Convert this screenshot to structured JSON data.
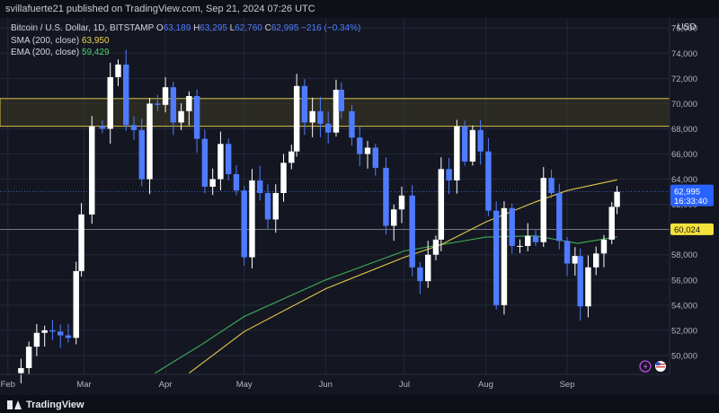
{
  "header": {
    "published": "svillafuerte21 published on TradingView.com, Sep 21, 2024 07:26 UTC"
  },
  "legend": {
    "symbol": "Bitcoin / U.S. Dollar, 1D, BITSTAMP",
    "ohlc": [
      {
        "k": "O",
        "v": "63,189"
      },
      {
        "k": "H",
        "v": "63,295"
      },
      {
        "k": "L",
        "v": "62,760"
      },
      {
        "k": "C",
        "v": "62,995"
      }
    ],
    "change": "−216 (−0.34%)",
    "sma_label": "SMA (200, close)",
    "sma_value": "63,950",
    "ema_label": "EMA (200, close)",
    "ema_value": "59,429"
  },
  "currency_button": "USD",
  "brand": "TradingView",
  "colors": {
    "background": "#141722",
    "up_candle": "#ffffff",
    "down_candle": "#4f7bff",
    "sma": "#e3c94a",
    "ema": "#3fae5a",
    "zone_fill": "#3c3a22",
    "zone_border": "#d8c24a"
  },
  "chart_data": {
    "type": "candlestick",
    "y_axis_ticks": [
      "76,000",
      "74,000",
      "72,000",
      "70,000",
      "68,000",
      "66,000",
      "64,000",
      "62,000",
      "60,000",
      "58,000",
      "56,000",
      "54,000",
      "52,000",
      "50,000"
    ],
    "ylim": [
      48500,
      76800
    ],
    "x_axis_labels": [
      "Feb",
      "Mar",
      "Apr",
      "May",
      "Jun",
      "Jul",
      "Aug",
      "Sep"
    ],
    "x_label_dates": [
      "2024-02-01",
      "2024-03-01",
      "2024-04-01",
      "2024-05-01",
      "2024-06-01",
      "2024-07-01",
      "2024-08-01",
      "2024-09-01"
    ],
    "xlim": [
      "2024-01-29",
      "2024-10-10"
    ],
    "last_price_tag": {
      "price": "62,995",
      "countdown": "16:33:40",
      "value": 62995
    },
    "level_tag": {
      "price": "60,024",
      "value": 60024
    },
    "resistance_zone": [
      68200,
      70400
    ],
    "closes": [
      {
        "date": "2024-02-06",
        "close": 49000
      },
      {
        "date": "2024-02-09",
        "close": 50700
      },
      {
        "date": "2024-02-12",
        "close": 51800
      },
      {
        "date": "2024-02-15",
        "close": 52000
      },
      {
        "date": "2024-02-18",
        "close": 51900
      },
      {
        "date": "2024-02-21",
        "close": 51600
      },
      {
        "date": "2024-02-24",
        "close": 51400
      },
      {
        "date": "2024-02-27",
        "close": 56700
      },
      {
        "date": "2024-02-29",
        "close": 61200
      },
      {
        "date": "2024-03-04",
        "close": 68200
      },
      {
        "date": "2024-03-08",
        "close": 68000
      },
      {
        "date": "2024-03-11",
        "close": 72100
      },
      {
        "date": "2024-03-14",
        "close": 73100
      },
      {
        "date": "2024-03-17",
        "close": 68300
      },
      {
        "date": "2024-03-20",
        "close": 67900
      },
      {
        "date": "2024-03-23",
        "close": 64000
      },
      {
        "date": "2024-03-26",
        "close": 70000
      },
      {
        "date": "2024-03-29",
        "close": 69900
      },
      {
        "date": "2024-04-01",
        "close": 71300
      },
      {
        "date": "2024-04-04",
        "close": 68500
      },
      {
        "date": "2024-04-07",
        "close": 69400
      },
      {
        "date": "2024-04-10",
        "close": 70600
      },
      {
        "date": "2024-04-13",
        "close": 67200
      },
      {
        "date": "2024-04-16",
        "close": 63400
      },
      {
        "date": "2024-04-19",
        "close": 64000
      },
      {
        "date": "2024-04-22",
        "close": 66800
      },
      {
        "date": "2024-04-25",
        "close": 64400
      },
      {
        "date": "2024-04-28",
        "close": 63100
      },
      {
        "date": "2024-05-01",
        "close": 57800
      },
      {
        "date": "2024-05-04",
        "close": 63900
      },
      {
        "date": "2024-05-07",
        "close": 62900
      },
      {
        "date": "2024-05-10",
        "close": 60800
      },
      {
        "date": "2024-05-13",
        "close": 62900
      },
      {
        "date": "2024-05-16",
        "close": 65300
      },
      {
        "date": "2024-05-19",
        "close": 66200
      },
      {
        "date": "2024-05-21",
        "close": 71400
      },
      {
        "date": "2024-05-24",
        "close": 68500
      },
      {
        "date": "2024-05-27",
        "close": 69400
      },
      {
        "date": "2024-05-30",
        "close": 68400
      },
      {
        "date": "2024-06-02",
        "close": 67700
      },
      {
        "date": "2024-06-05",
        "close": 71100
      },
      {
        "date": "2024-06-07",
        "close": 69400
      },
      {
        "date": "2024-06-11",
        "close": 67300
      },
      {
        "date": "2024-06-14",
        "close": 66000
      },
      {
        "date": "2024-06-17",
        "close": 66500
      },
      {
        "date": "2024-06-20",
        "close": 64900
      },
      {
        "date": "2024-06-24",
        "close": 60300
      },
      {
        "date": "2024-06-27",
        "close": 61600
      },
      {
        "date": "2024-06-30",
        "close": 62700
      },
      {
        "date": "2024-07-04",
        "close": 57000
      },
      {
        "date": "2024-07-07",
        "close": 55900
      },
      {
        "date": "2024-07-10",
        "close": 58000
      },
      {
        "date": "2024-07-13",
        "close": 59200
      },
      {
        "date": "2024-07-15",
        "close": 64800
      },
      {
        "date": "2024-07-18",
        "close": 63900
      },
      {
        "date": "2024-07-21",
        "close": 68200
      },
      {
        "date": "2024-07-24",
        "close": 65400
      },
      {
        "date": "2024-07-27",
        "close": 67900
      },
      {
        "date": "2024-07-30",
        "close": 66200
      },
      {
        "date": "2024-08-02",
        "close": 61500
      },
      {
        "date": "2024-08-05",
        "close": 54000
      },
      {
        "date": "2024-08-08",
        "close": 61700
      },
      {
        "date": "2024-08-11",
        "close": 58700
      },
      {
        "date": "2024-08-14",
        "close": 58700
      },
      {
        "date": "2024-08-17",
        "close": 59500
      },
      {
        "date": "2024-08-20",
        "close": 59000
      },
      {
        "date": "2024-08-23",
        "close": 64100
      },
      {
        "date": "2024-08-26",
        "close": 62900
      },
      {
        "date": "2024-08-29",
        "close": 59100
      },
      {
        "date": "2024-09-01",
        "close": 57300
      },
      {
        "date": "2024-09-04",
        "close": 57900
      },
      {
        "date": "2024-09-06",
        "close": 53900
      },
      {
        "date": "2024-09-09",
        "close": 57000
      },
      {
        "date": "2024-09-12",
        "close": 58100
      },
      {
        "date": "2024-09-15",
        "close": 59200
      },
      {
        "date": "2024-09-18",
        "close": 61800
      },
      {
        "date": "2024-09-20",
        "close": 62995
      }
    ],
    "sma_200": [
      {
        "date": "2024-04-10",
        "value": 48600
      },
      {
        "date": "2024-05-01",
        "value": 51900
      },
      {
        "date": "2024-06-01",
        "value": 55300
      },
      {
        "date": "2024-07-01",
        "value": 57800
      },
      {
        "date": "2024-07-15",
        "value": 58800
      },
      {
        "date": "2024-08-01",
        "value": 60600
      },
      {
        "date": "2024-08-20",
        "value": 62200
      },
      {
        "date": "2024-09-01",
        "value": 63100
      },
      {
        "date": "2024-09-20",
        "value": 63950
      }
    ],
    "ema_200": [
      {
        "date": "2024-03-28",
        "value": 48600
      },
      {
        "date": "2024-04-15",
        "value": 50900
      },
      {
        "date": "2024-05-01",
        "value": 53100
      },
      {
        "date": "2024-06-01",
        "value": 56000
      },
      {
        "date": "2024-07-01",
        "value": 58300
      },
      {
        "date": "2024-08-01",
        "value": 59400
      },
      {
        "date": "2024-08-20",
        "value": 59500
      },
      {
        "date": "2024-09-05",
        "value": 58900
      },
      {
        "date": "2024-09-20",
        "value": 59429
      }
    ]
  }
}
